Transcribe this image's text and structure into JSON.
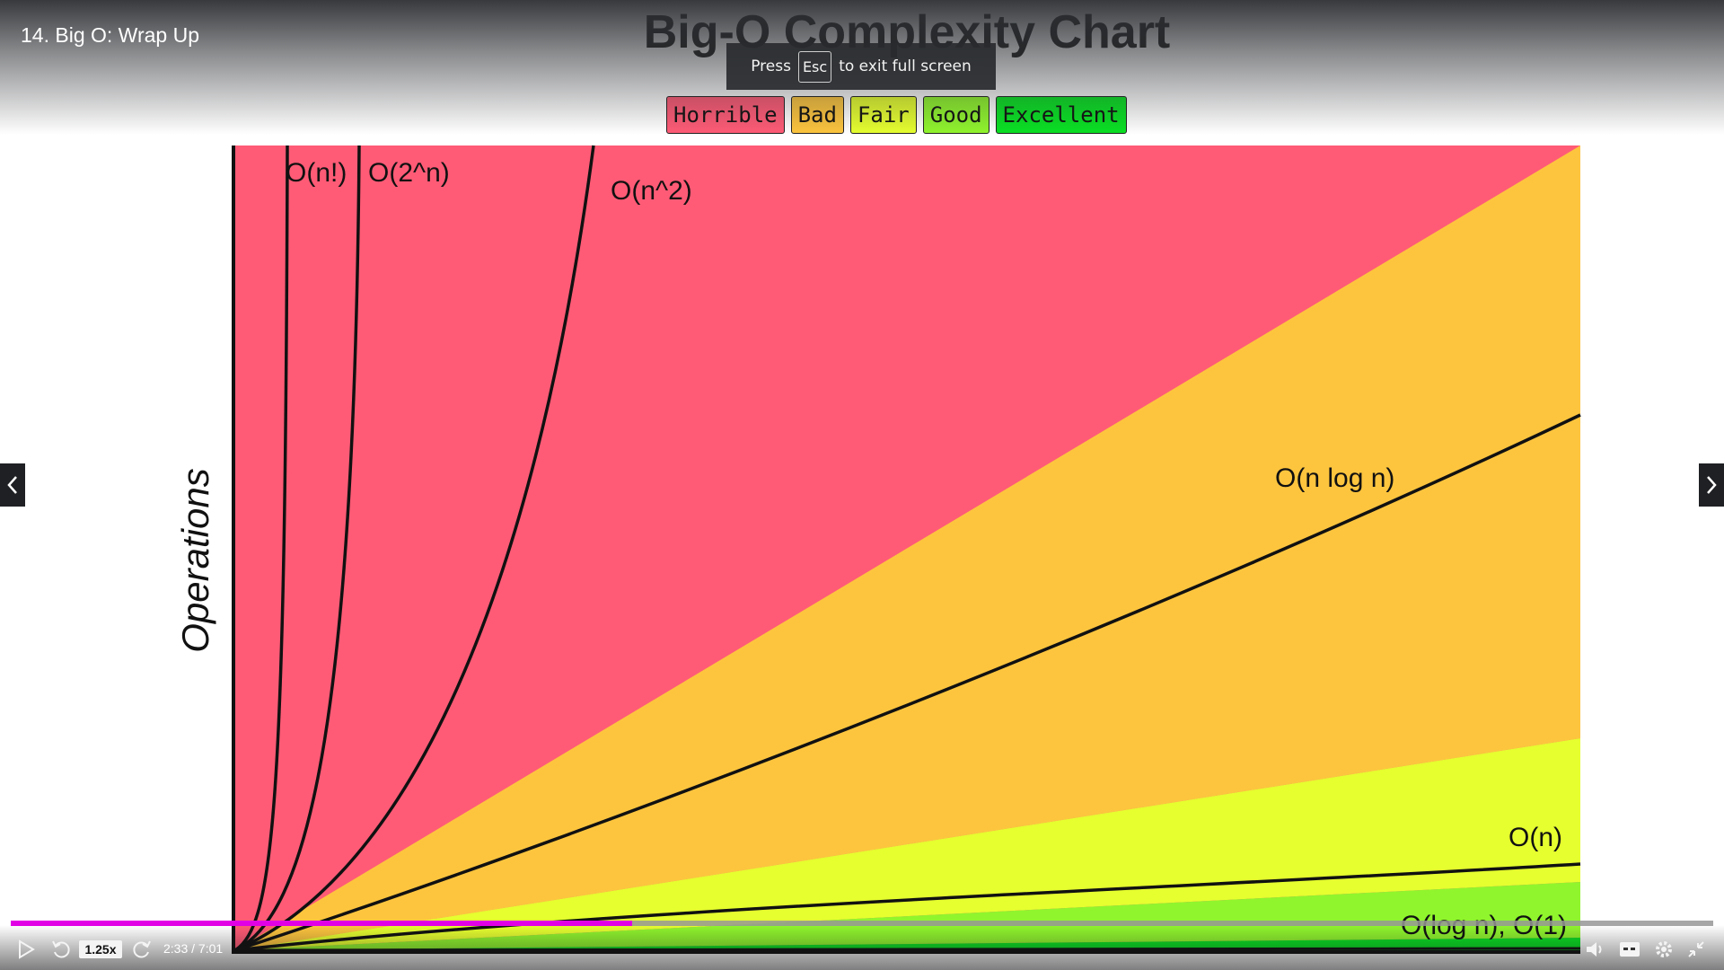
{
  "lecture": {
    "title": "14. Big O: Wrap Up"
  },
  "toast": {
    "press": "Press",
    "key": "Esc",
    "message": "to exit full screen"
  },
  "chart_data": {
    "type": "area",
    "title": "Big-O Complexity Chart",
    "ylabel": "Operations",
    "xlabel": "",
    "legend": [
      {
        "label": "Horrible",
        "color": "#ff5b76"
      },
      {
        "label": "Bad",
        "color": "#fdc53e"
      },
      {
        "label": "Fair",
        "color": "#e6ff2f"
      },
      {
        "label": "Good",
        "color": "#90f52d"
      },
      {
        "label": "Excellent",
        "color": "#09e123"
      }
    ],
    "curves": [
      {
        "name": "O(n!)"
      },
      {
        "name": "O(2^n)"
      },
      {
        "name": "O(n^2)"
      },
      {
        "name": "O(n log n)"
      },
      {
        "name": "O(n)"
      },
      {
        "name": "O(log n), O(1)"
      }
    ]
  },
  "player": {
    "speed": "1.25x",
    "time": "2:33 / 7:01",
    "progress": 0.365,
    "prev_icon": "chevron-left-icon",
    "next_icon": "chevron-right-icon"
  }
}
